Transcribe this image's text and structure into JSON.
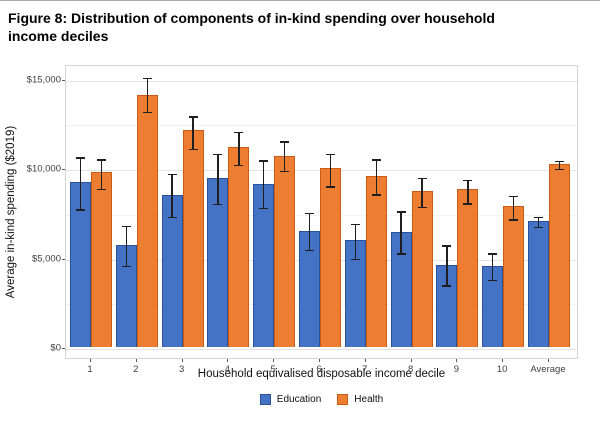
{
  "figure": {
    "title": "Figure 8: Distribution of components of in-kind spending over household income deciles"
  },
  "chart_data": {
    "type": "bar",
    "title": "Figure 8: Distribution of components of in-kind spending over household income deciles",
    "xlabel": "Household equivalised disposable income decile",
    "ylabel": "Average in-kind spending ($2019)",
    "categories": [
      "1",
      "2",
      "3",
      "4",
      "5",
      "6",
      "7",
      "8",
      "9",
      "10",
      "Average"
    ],
    "series": [
      {
        "name": "Education",
        "color": "#4472C4",
        "border_color": "#2A5199",
        "values": [
          9200,
          5700,
          8500,
          9450,
          9100,
          6500,
          6000,
          6450,
          4600,
          4550,
          7050
        ],
        "error_low": [
          7800,
          4650,
          7400,
          8100,
          7900,
          5550,
          5050,
          5350,
          3550,
          3850,
          6830
        ],
        "error_high": [
          10700,
          6870,
          9800,
          10900,
          10550,
          7600,
          7000,
          7700,
          5800,
          5350,
          7370
        ]
      },
      {
        "name": "Health",
        "color": "#ED7D31",
        "border_color": "#CC5B12",
        "values": [
          9750,
          14100,
          12100,
          11150,
          10650,
          10000,
          9550,
          8700,
          8800,
          7900,
          10250
        ],
        "error_low": [
          8950,
          13250,
          11200,
          10300,
          9950,
          9100,
          8650,
          7950,
          8150,
          7250,
          10050
        ],
        "error_high": [
          10600,
          15150,
          13000,
          12150,
          11600,
          10900,
          10600,
          9550,
          9450,
          8550,
          10500
        ]
      }
    ],
    "ylim": [
      0,
      15800
    ],
    "y_ticks": [
      {
        "value": 0,
        "label": "$0"
      },
      {
        "value": 5000,
        "label": "$5,000"
      },
      {
        "value": 10000,
        "label": "$10,000"
      },
      {
        "value": 15000,
        "label": "$15,000"
      }
    ],
    "y_minor_ticks": [
      2500,
      7500,
      12500
    ],
    "grid": true,
    "error_bars": true,
    "legend_position": "bottom"
  }
}
